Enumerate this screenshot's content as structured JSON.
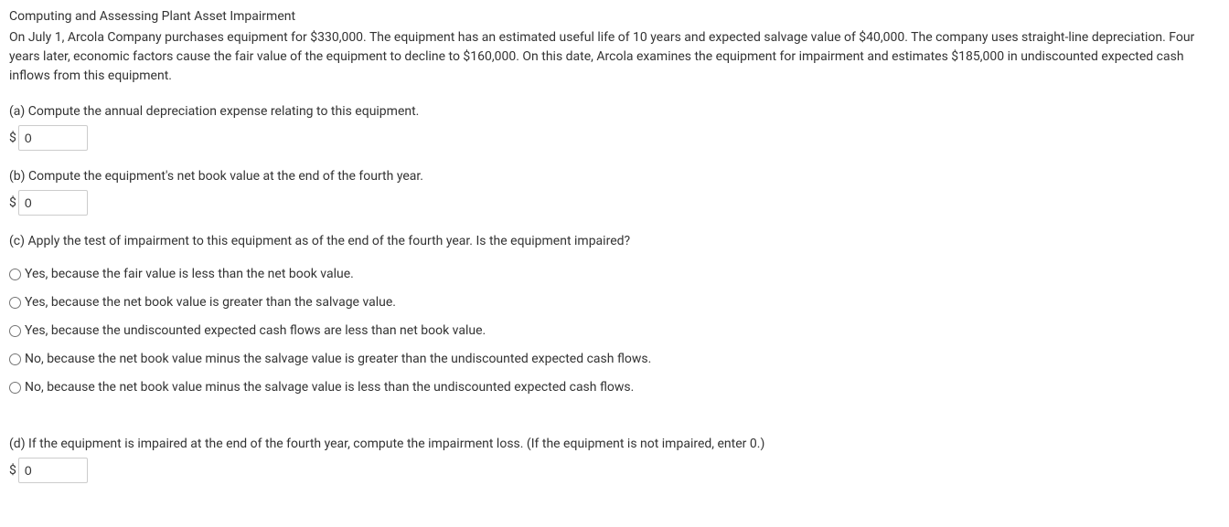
{
  "title": "Computing and Assessing Plant Asset Impairment",
  "description": "On July 1, Arcola Company purchases equipment for $330,000. The equipment has an estimated useful life of 10 years and expected salvage value of $40,000. The company uses straight-line depreciation. Four years later, economic factors cause the fair value of the equipment to decline to $160,000. On this date, Arcola examines the equipment for impairment and estimates $185,000 in undiscounted expected cash inflows from this equipment.",
  "questions": {
    "a": {
      "text": "(a) Compute the annual depreciation expense relating to this equipment.",
      "currency_symbol": "$",
      "value": "0"
    },
    "b": {
      "text": "(b) Compute the equipment's net book value at the end of the fourth year.",
      "currency_symbol": "$",
      "value": "0"
    },
    "c": {
      "text": "(c) Apply the test of impairment to this equipment as of the end of the fourth year. Is the equipment impaired?",
      "options": [
        "Yes, because the fair value is less than the net book value.",
        "Yes, because the net book value is greater than the salvage value.",
        "Yes, because the undiscounted expected cash flows are less than net book value.",
        "No, because the net book value minus the salvage value is greater than the undiscounted expected cash flows.",
        "No, because the net book value minus the salvage value is less than the undiscounted expected cash flows."
      ]
    },
    "d": {
      "text": "(d) If the equipment is impaired at the end of the fourth year, compute the impairment loss. (If the equipment is not impaired, enter 0.)",
      "currency_symbol": "$",
      "value": "0"
    }
  }
}
